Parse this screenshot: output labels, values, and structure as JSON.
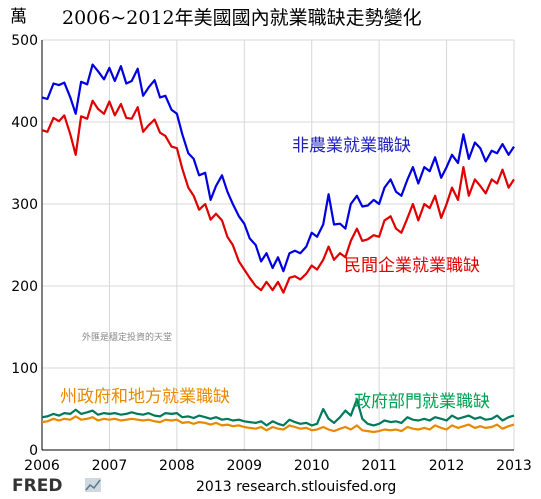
{
  "chart_data": {
    "type": "line",
    "title": "2006~2012年美國國內就業職缺走勢變化",
    "unit_label": "萬",
    "ylim": [
      0,
      500
    ],
    "yticks": [
      0,
      100,
      200,
      300,
      400,
      500
    ],
    "xlim": [
      2006,
      2013
    ],
    "xticks": [
      2006,
      2007,
      2008,
      2009,
      2010,
      2011,
      2012,
      2013
    ],
    "grid": true,
    "series": [
      {
        "name": "非農業就業職缺",
        "color": "#0000e0",
        "x": [
          2006.0,
          2006.08,
          2006.17,
          2006.25,
          2006.33,
          2006.42,
          2006.5,
          2006.58,
          2006.67,
          2006.75,
          2006.83,
          2006.92,
          2007.0,
          2007.08,
          2007.17,
          2007.25,
          2007.33,
          2007.42,
          2007.5,
          2007.58,
          2007.67,
          2007.75,
          2007.83,
          2007.92,
          2008.0,
          2008.08,
          2008.17,
          2008.25,
          2008.33,
          2008.42,
          2008.5,
          2008.58,
          2008.67,
          2008.75,
          2008.83,
          2008.92,
          2009.0,
          2009.08,
          2009.17,
          2009.25,
          2009.33,
          2009.42,
          2009.5,
          2009.58,
          2009.67,
          2009.75,
          2009.83,
          2009.92,
          2010.0,
          2010.08,
          2010.17,
          2010.25,
          2010.33,
          2010.42,
          2010.5,
          2010.58,
          2010.67,
          2010.75,
          2010.83,
          2010.92,
          2011.0,
          2011.08,
          2011.17,
          2011.25,
          2011.33,
          2011.42,
          2011.5,
          2011.58,
          2011.67,
          2011.75,
          2011.83,
          2011.92,
          2012.0,
          2012.08,
          2012.17,
          2012.25,
          2012.33,
          2012.42,
          2012.5,
          2012.58,
          2012.67,
          2012.75,
          2012.83,
          2012.92,
          2013.0
        ],
        "values": [
          430,
          428,
          447,
          445,
          448,
          430,
          410,
          449,
          446,
          470,
          462,
          452,
          466,
          450,
          468,
          447,
          450,
          465,
          432,
          442,
          451,
          430,
          432,
          415,
          410,
          385,
          362,
          355,
          335,
          338,
          305,
          322,
          335,
          315,
          300,
          285,
          276,
          258,
          250,
          230,
          240,
          222,
          235,
          218,
          240,
          243,
          240,
          248,
          265,
          260,
          275,
          312,
          275,
          276,
          270,
          300,
          310,
          297,
          298,
          305,
          300,
          320,
          330,
          315,
          310,
          330,
          345,
          325,
          345,
          340,
          357,
          332,
          345,
          360,
          350,
          385,
          355,
          375,
          368,
          352,
          365,
          362,
          373,
          360,
          370
        ]
      },
      {
        "name": "民間企業就業職缺",
        "color": "#e00000",
        "x": [
          2006.0,
          2006.08,
          2006.17,
          2006.25,
          2006.33,
          2006.42,
          2006.5,
          2006.58,
          2006.67,
          2006.75,
          2006.83,
          2006.92,
          2007.0,
          2007.08,
          2007.17,
          2007.25,
          2007.33,
          2007.42,
          2007.5,
          2007.58,
          2007.67,
          2007.75,
          2007.83,
          2007.92,
          2008.0,
          2008.08,
          2008.17,
          2008.25,
          2008.33,
          2008.42,
          2008.5,
          2008.58,
          2008.67,
          2008.75,
          2008.83,
          2008.92,
          2009.0,
          2009.08,
          2009.17,
          2009.25,
          2009.33,
          2009.42,
          2009.5,
          2009.58,
          2009.67,
          2009.75,
          2009.83,
          2009.92,
          2010.0,
          2010.08,
          2010.17,
          2010.25,
          2010.33,
          2010.42,
          2010.5,
          2010.58,
          2010.67,
          2010.75,
          2010.83,
          2010.92,
          2011.0,
          2011.08,
          2011.17,
          2011.25,
          2011.33,
          2011.42,
          2011.5,
          2011.58,
          2011.67,
          2011.75,
          2011.83,
          2011.92,
          2012.0,
          2012.08,
          2012.17,
          2012.25,
          2012.33,
          2012.42,
          2012.5,
          2012.58,
          2012.67,
          2012.75,
          2012.83,
          2012.92,
          2013.0
        ],
        "values": [
          390,
          388,
          405,
          401,
          408,
          385,
          360,
          407,
          404,
          426,
          416,
          410,
          425,
          408,
          422,
          405,
          404,
          418,
          388,
          396,
          403,
          387,
          383,
          370,
          368,
          343,
          320,
          310,
          293,
          300,
          281,
          288,
          280,
          260,
          250,
          230,
          220,
          210,
          200,
          195,
          205,
          195,
          205,
          192,
          210,
          212,
          208,
          215,
          225,
          220,
          232,
          248,
          232,
          240,
          235,
          255,
          270,
          255,
          257,
          262,
          260,
          280,
          285,
          270,
          265,
          283,
          300,
          280,
          300,
          295,
          310,
          283,
          300,
          320,
          305,
          345,
          310,
          330,
          322,
          313,
          330,
          325,
          342,
          320,
          330
        ]
      },
      {
        "name": "政府部門就業職缺",
        "color": "#007a5a",
        "x": [
          2006.0,
          2006.08,
          2006.17,
          2006.25,
          2006.33,
          2006.42,
          2006.5,
          2006.58,
          2006.67,
          2006.75,
          2006.83,
          2006.92,
          2007.0,
          2007.08,
          2007.17,
          2007.25,
          2007.33,
          2007.42,
          2007.5,
          2007.58,
          2007.67,
          2007.75,
          2007.83,
          2007.92,
          2008.0,
          2008.08,
          2008.17,
          2008.25,
          2008.33,
          2008.42,
          2008.5,
          2008.58,
          2008.67,
          2008.75,
          2008.83,
          2008.92,
          2009.0,
          2009.08,
          2009.17,
          2009.25,
          2009.33,
          2009.42,
          2009.5,
          2009.58,
          2009.67,
          2009.75,
          2009.83,
          2009.92,
          2010.0,
          2010.08,
          2010.17,
          2010.25,
          2010.33,
          2010.42,
          2010.5,
          2010.58,
          2010.67,
          2010.75,
          2010.83,
          2010.92,
          2011.0,
          2011.08,
          2011.17,
          2011.25,
          2011.33,
          2011.42,
          2011.5,
          2011.58,
          2011.67,
          2011.75,
          2011.83,
          2011.92,
          2012.0,
          2012.08,
          2012.17,
          2012.25,
          2012.33,
          2012.42,
          2012.5,
          2012.58,
          2012.67,
          2012.75,
          2012.83,
          2012.92,
          2013.0
        ],
        "values": [
          40,
          41,
          44,
          42,
          45,
          44,
          49,
          44,
          46,
          48,
          43,
          45,
          44,
          45,
          43,
          44,
          46,
          44,
          43,
          45,
          42,
          41,
          45,
          44,
          45,
          40,
          41,
          39,
          42,
          40,
          38,
          40,
          37,
          38,
          36,
          37,
          35,
          34,
          33,
          35,
          30,
          35,
          32,
          30,
          37,
          34,
          32,
          33,
          30,
          32,
          50,
          38,
          33,
          40,
          48,
          42,
          62,
          38,
          32,
          30,
          32,
          36,
          34,
          35,
          33,
          40,
          37,
          36,
          38,
          36,
          40,
          38,
          36,
          42,
          38,
          40,
          42,
          38,
          40,
          37,
          38,
          42,
          36,
          40,
          42
        ]
      },
      {
        "name": "州政府和地方就業職缺",
        "color": "#e88a00",
        "x": [
          2006.0,
          2006.08,
          2006.17,
          2006.25,
          2006.33,
          2006.42,
          2006.5,
          2006.58,
          2006.67,
          2006.75,
          2006.83,
          2006.92,
          2007.0,
          2007.08,
          2007.17,
          2007.25,
          2007.33,
          2007.42,
          2007.5,
          2007.58,
          2007.67,
          2007.75,
          2007.83,
          2007.92,
          2008.0,
          2008.08,
          2008.17,
          2008.25,
          2008.33,
          2008.42,
          2008.5,
          2008.58,
          2008.67,
          2008.75,
          2008.83,
          2008.92,
          2009.0,
          2009.08,
          2009.17,
          2009.25,
          2009.33,
          2009.42,
          2009.5,
          2009.58,
          2009.67,
          2009.75,
          2009.83,
          2009.92,
          2010.0,
          2010.08,
          2010.17,
          2010.25,
          2010.33,
          2010.42,
          2010.5,
          2010.58,
          2010.67,
          2010.75,
          2010.83,
          2010.92,
          2011.0,
          2011.08,
          2011.17,
          2011.25,
          2011.33,
          2011.42,
          2011.5,
          2011.58,
          2011.67,
          2011.75,
          2011.83,
          2011.92,
          2012.0,
          2012.08,
          2012.17,
          2012.25,
          2012.33,
          2012.42,
          2012.5,
          2012.58,
          2012.67,
          2012.75,
          2012.83,
          2012.92,
          2013.0
        ],
        "values": [
          34,
          35,
          38,
          36,
          38,
          37,
          41,
          37,
          38,
          40,
          36,
          38,
          37,
          38,
          36,
          37,
          38,
          37,
          36,
          37,
          35,
          34,
          37,
          36,
          37,
          33,
          34,
          32,
          34,
          33,
          31,
          33,
          30,
          31,
          29,
          30,
          28,
          27,
          26,
          28,
          24,
          28,
          26,
          25,
          30,
          28,
          26,
          27,
          24,
          25,
          28,
          25,
          23,
          26,
          28,
          25,
          30,
          24,
          23,
          22,
          23,
          25,
          24,
          25,
          23,
          28,
          26,
          25,
          27,
          25,
          30,
          27,
          25,
          30,
          27,
          29,
          31,
          27,
          29,
          27,
          28,
          31,
          26,
          29,
          31
        ]
      }
    ],
    "series_labels": [
      "非農業就業職缺",
      "民間企業就業職缺",
      "州政府和地方就業職缺",
      "政府部門就業職缺"
    ]
  },
  "watermark": "外匯是穩定投資的天堂",
  "source": "2013 research.stlouisfed.org",
  "logo": "FRED"
}
